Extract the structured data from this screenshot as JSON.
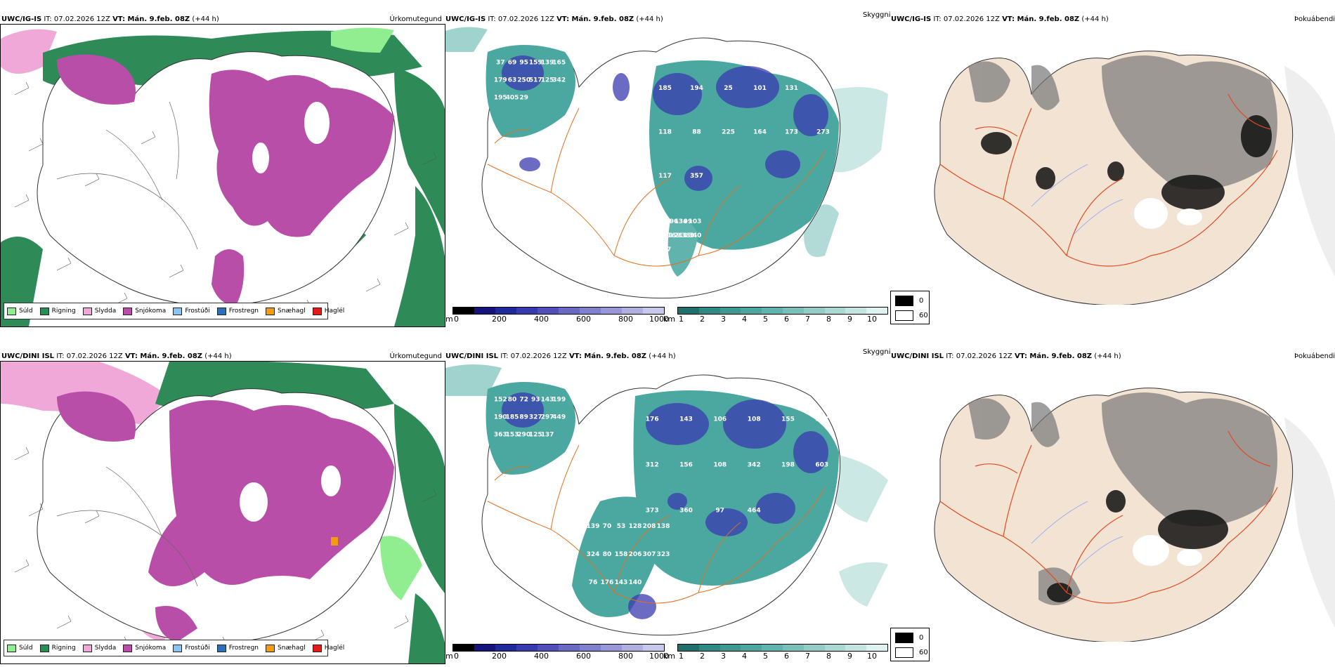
{
  "rows": [
    {
      "model_label": "UWC/IG-IS",
      "it_text": "IT: 07.02.2026 12Z",
      "vt_label": "VT: Mán. 9.feb. 08Z",
      "lead_text": "(+44 h)",
      "precip_title": "Úrkomutegund",
      "cloud_title": "Skyggni",
      "fog_title": "Þokuábendi",
      "cloud_numbers": [
        "37",
        "185",
        "101",
        "69",
        "194",
        "18",
        "95",
        "25",
        "96",
        "159",
        "101",
        "134",
        "139",
        "131",
        "99",
        "165",
        "102",
        "103",
        "179",
        "118",
        "68",
        "63",
        "88",
        "181",
        "250",
        "225",
        "169",
        "517",
        "164",
        "211",
        "125",
        "173",
        "383",
        "342",
        "273",
        "340",
        "195",
        "117",
        "524",
        "405",
        "357",
        "97",
        "29"
      ]
    },
    {
      "model_label": "UWC/DINI ISL",
      "it_text": "IT: 07.02.2026 12Z",
      "vt_label": "VT: Mán. 9.feb. 08Z",
      "lead_text": "(+44 h)",
      "precip_title": "Úrkomutegund",
      "cloud_title": "Skyggni",
      "fog_title": "Þokuábendi",
      "cloud_numbers": [
        "152",
        "176",
        "139",
        "80",
        "143",
        "70",
        "72",
        "106",
        "53",
        "93",
        "108",
        "128",
        "143",
        "155",
        "208",
        "199",
        "128",
        "138",
        "190",
        "312",
        "324",
        "185",
        "156",
        "80",
        "89",
        "108",
        "158",
        "327",
        "342",
        "206",
        "297",
        "198",
        "307",
        "449",
        "603",
        "323",
        "363",
        "373",
        "76",
        "153",
        "360",
        "176",
        "290",
        "97",
        "143",
        "125",
        "464",
        "140",
        "137"
      ]
    }
  ],
  "precip_legend": [
    {
      "label": "Súld",
      "color": "#90ee90"
    },
    {
      "label": "Rigning",
      "color": "#2e8b57"
    },
    {
      "label": "Slydda",
      "color": "#f0a8d8"
    },
    {
      "label": "Snjókoma",
      "color": "#b84ea8"
    },
    {
      "label": "Frostúði",
      "color": "#8cc4f0"
    },
    {
      "label": "Frostregn",
      "color": "#2f6fb8"
    },
    {
      "label": "Snæhagl",
      "color": "#f39c12"
    },
    {
      "label": "Haglél",
      "color": "#e41a1c"
    }
  ],
  "height_colorbar": {
    "unit": "m",
    "ticks": [
      "0",
      "200",
      "400",
      "600",
      "800",
      "1000"
    ],
    "colors": [
      "#000000",
      "#14147a",
      "#1f2a9a",
      "#3a3ab0",
      "#5050b8",
      "#6a6ac4",
      "#8080cc",
      "#9898d8",
      "#b0b0e0",
      "#c8c8ec"
    ]
  },
  "visibility_colorbar": {
    "unit": "km",
    "ticks": [
      "1",
      "2",
      "3",
      "4",
      "5",
      "6",
      "7",
      "8",
      "9",
      "10"
    ],
    "colors": [
      "#1f6f6a",
      "#2e8a84",
      "#3c9a93",
      "#4aa8a0",
      "#60b4ad",
      "#78c0b9",
      "#92ccc6",
      "#aad8d3",
      "#c4e4e0",
      "#e0f2f0"
    ]
  },
  "fog_legend": {
    "high_label": "0",
    "low_label": "60",
    "high_color": "#000000",
    "low_color": "#ffffff"
  },
  "colors": {
    "snow": "#b84ea8",
    "rain": "#2e8b57",
    "drizzle": "#90ee90",
    "sleet": "#f0a8d8",
    "cloud_teal": "#4aa8a0",
    "cloud_blue": "#3a3ab0",
    "land_fog": "#f3e3d3",
    "roads": "#e07020"
  }
}
